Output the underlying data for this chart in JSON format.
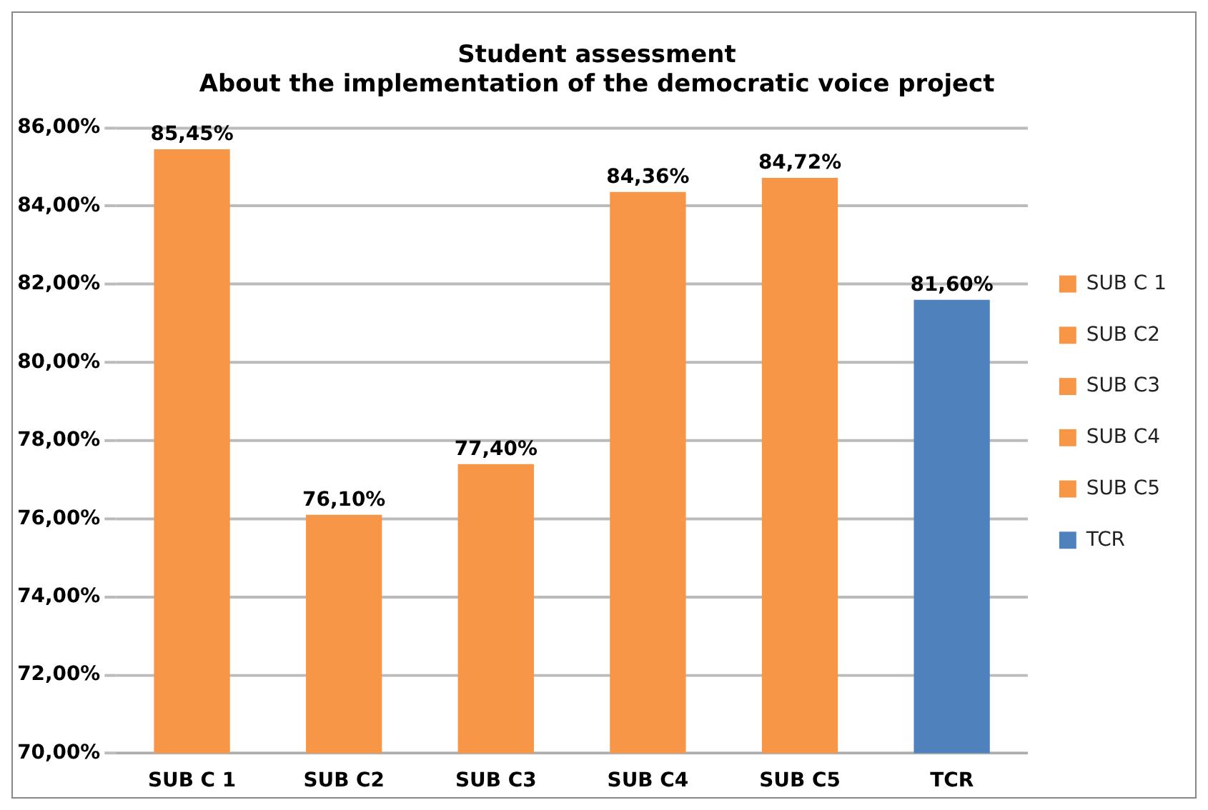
{
  "chart_data": {
    "type": "bar",
    "title": "Student assessment",
    "subtitle": "About the implementation of the democratic voice project",
    "categories": [
      "SUB C 1",
      "SUB C2",
      "SUB C3",
      "SUB C4",
      "SUB C5",
      "TCR"
    ],
    "series": [
      {
        "name": "SUB C 1",
        "color": "#f79646",
        "values": [
          85.45,
          null,
          null,
          null,
          null,
          null
        ],
        "value_labels": [
          "85,45%",
          null,
          null,
          null,
          null,
          null
        ]
      },
      {
        "name": "SUB C2",
        "color": "#f79646",
        "values": [
          null,
          76.1,
          null,
          null,
          null,
          null
        ],
        "value_labels": [
          null,
          "76,10%",
          null,
          null,
          null,
          null
        ]
      },
      {
        "name": "SUB C3",
        "color": "#f79646",
        "values": [
          null,
          null,
          77.4,
          null,
          null,
          null
        ],
        "value_labels": [
          null,
          null,
          "77,40%",
          null,
          null,
          null
        ]
      },
      {
        "name": "SUB C4",
        "color": "#f79646",
        "values": [
          null,
          null,
          null,
          84.36,
          null,
          null
        ],
        "value_labels": [
          null,
          null,
          null,
          "84,36%",
          null,
          null
        ]
      },
      {
        "name": "SUB C5",
        "color": "#f79646",
        "values": [
          null,
          null,
          null,
          null,
          84.72,
          null
        ],
        "value_labels": [
          null,
          null,
          null,
          null,
          "84,72%",
          null
        ]
      },
      {
        "name": "TCR",
        "color": "#4f81bd",
        "values": [
          null,
          null,
          null,
          null,
          null,
          81.6
        ],
        "value_labels": [
          null,
          null,
          null,
          null,
          null,
          "81,60%"
        ]
      }
    ],
    "ylim": [
      70,
      86
    ],
    "yticks": [
      {
        "value": 70,
        "label": "70,00%"
      },
      {
        "value": 72,
        "label": "72,00%"
      },
      {
        "value": 74,
        "label": "74,00%"
      },
      {
        "value": 76,
        "label": "76,00%"
      },
      {
        "value": 78,
        "label": "78,00%"
      },
      {
        "value": 80,
        "label": "80,00%"
      },
      {
        "value": 82,
        "label": "82,00%"
      },
      {
        "value": 84,
        "label": "84,00%"
      },
      {
        "value": 86,
        "label": "86,00%"
      }
    ],
    "grid": "y",
    "legend": "right"
  }
}
